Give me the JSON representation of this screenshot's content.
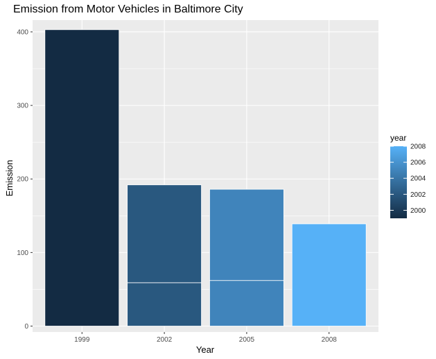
{
  "chart_data": {
    "type": "bar",
    "stacked": true,
    "title": "Emission from Motor Vehicles in Baltimore City",
    "xlabel": "Year",
    "ylabel": "Emission",
    "categories": [
      "1999",
      "2002",
      "2005",
      "2008"
    ],
    "segments": [
      {
        "category": "1999",
        "value": 403
      },
      {
        "category": "2002",
        "value": 59
      },
      {
        "category": "2002",
        "value": 133
      },
      {
        "category": "2005",
        "value": 62
      },
      {
        "category": "2005",
        "value": 124
      },
      {
        "category": "2008",
        "value": 139
      }
    ],
    "ylim": [
      -8,
      416
    ],
    "yticks": [
      0,
      100,
      200,
      300,
      400
    ],
    "grid": true,
    "fill_scale": {
      "title": "year",
      "min": 1999,
      "max": 2008,
      "low_color": "#132b43",
      "high_color": "#56b1f7",
      "breaks": [
        "2000",
        "2002",
        "2004",
        "2006",
        "2008"
      ]
    },
    "legend_position": "right"
  },
  "colors": {
    "panel_background": "#ebebeb",
    "grid_major": "#ffffff"
  }
}
